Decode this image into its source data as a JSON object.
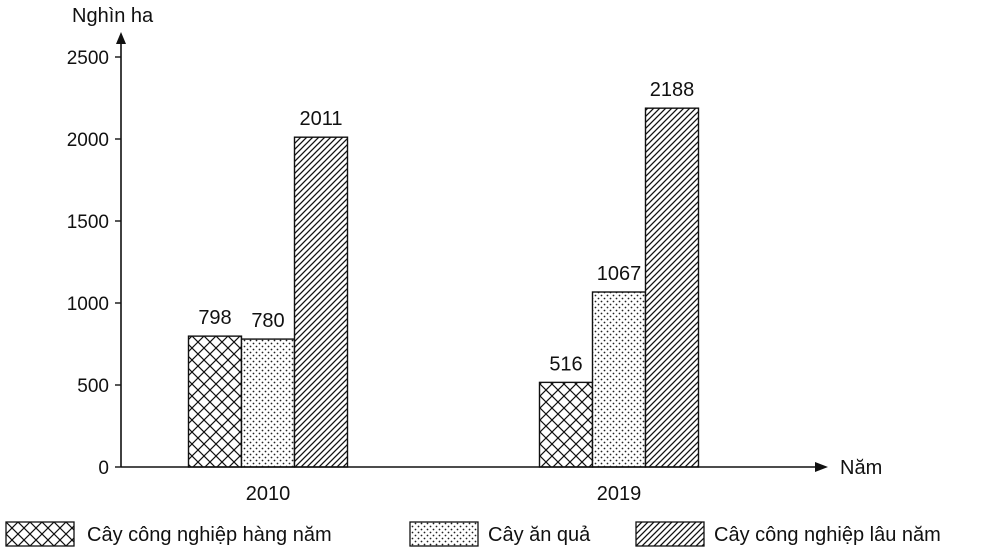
{
  "chart_data": {
    "type": "bar",
    "ylabel": "Nghìn ha",
    "xlabel": "Năm",
    "ylim": [
      0,
      2500
    ],
    "yticks": [
      0,
      500,
      1000,
      1500,
      2000,
      2500
    ],
    "categories": [
      "2010",
      "2019"
    ],
    "series": [
      {
        "name": "Cây công nghiệp hàng năm",
        "values": [
          798,
          516
        ],
        "pattern": "crosshatch"
      },
      {
        "name": "Cây ăn quả",
        "values": [
          780,
          1067
        ],
        "pattern": "dots"
      },
      {
        "name": "Cây công nghiệp lâu năm",
        "values": [
          2011,
          2188
        ],
        "pattern": "diagonal"
      }
    ],
    "legend_position": "bottom",
    "grid": false,
    "colors": {
      "ink": "#111111",
      "background": "#ffffff"
    }
  }
}
